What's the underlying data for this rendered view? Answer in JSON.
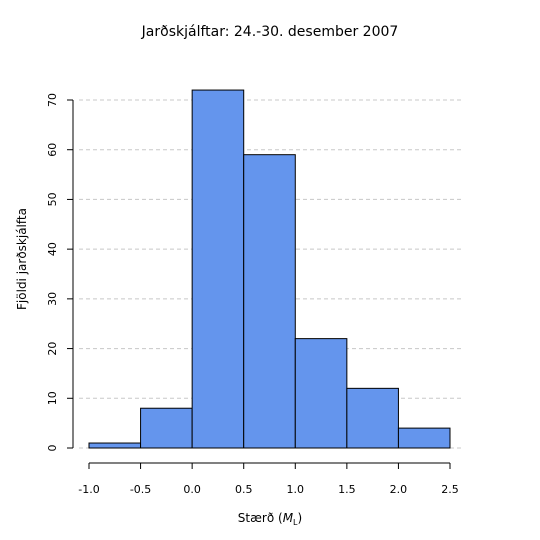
{
  "chart_data": {
    "type": "bar",
    "title": "Jarðskjálftar: 24.-30. desember 2007",
    "xlabel": "Stærð (",
    "xlabel_italic": "M",
    "xlabel_sub": "L",
    "xlabel_close": ")",
    "ylabel": "Fjöldi jarðskjálfta",
    "bins": [
      [
        -1.0,
        -0.5
      ],
      [
        -0.5,
        0.0
      ],
      [
        0.0,
        0.5
      ],
      [
        0.5,
        1.0
      ],
      [
        1.0,
        1.5
      ],
      [
        1.5,
        2.0
      ],
      [
        2.0,
        2.5
      ]
    ],
    "values": [
      1,
      8,
      72,
      59,
      22,
      12,
      4
    ],
    "xlim": [
      -1.0,
      2.5
    ],
    "ylim": [
      0,
      70
    ],
    "xticks": [
      "-1.0",
      "-0.5",
      "0.0",
      "0.5",
      "1.0",
      "1.5",
      "2.0",
      "2.5"
    ],
    "yticks": [
      "0",
      "10",
      "20",
      "30",
      "40",
      "50",
      "60",
      "70"
    ],
    "grid": true,
    "bar_color": "#6495ED"
  }
}
